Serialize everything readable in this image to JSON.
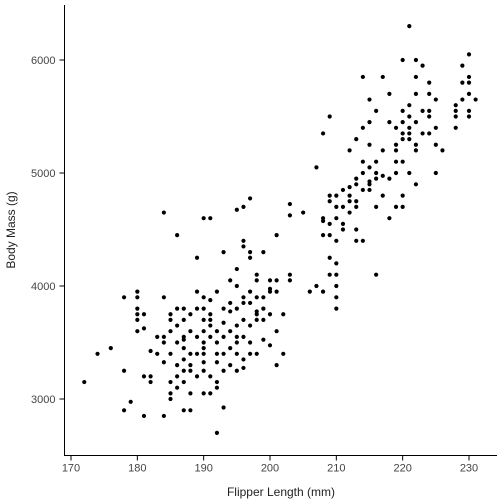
{
  "chart_data": {
    "type": "scatter",
    "title": "",
    "xlabel": "Flipper Length (mm)",
    "ylabel": "Body Mass (g)",
    "xlim": [
      169,
      233
    ],
    "ylim": [
      2550,
      6500
    ],
    "xticks": [
      170,
      180,
      190,
      200,
      210,
      220,
      230
    ],
    "yticks": [
      3000,
      4000,
      5000,
      6000
    ],
    "grid": false,
    "legend": "none",
    "marker_color": "#000000",
    "series": [
      {
        "points": [
          [
            172,
            3150
          ],
          [
            174,
            3400
          ],
          [
            176,
            3450
          ],
          [
            178,
            3250
          ],
          [
            178,
            2900
          ],
          [
            178,
            3900
          ],
          [
            179,
            2975
          ],
          [
            180,
            3700
          ],
          [
            180,
            3600
          ],
          [
            180,
            3750
          ],
          [
            180,
            3800
          ],
          [
            180,
            3950
          ],
          [
            180,
            3900
          ],
          [
            181,
            2850
          ],
          [
            181,
            3625
          ],
          [
            181,
            3200
          ],
          [
            181,
            3750
          ],
          [
            182,
            3150
          ],
          [
            182,
            3425
          ],
          [
            182,
            3200
          ],
          [
            183,
            3550
          ],
          [
            183,
            3400
          ],
          [
            184,
            3900
          ],
          [
            184,
            3500
          ],
          [
            184,
            3550
          ],
          [
            184,
            3325
          ],
          [
            184,
            2850
          ],
          [
            184,
            4650
          ],
          [
            185,
            3150
          ],
          [
            185,
            3700
          ],
          [
            185,
            3750
          ],
          [
            185,
            3400
          ],
          [
            185,
            3050
          ],
          [
            185,
            3000
          ],
          [
            185,
            3600
          ],
          [
            186,
            3100
          ],
          [
            186,
            3800
          ],
          [
            186,
            3200
          ],
          [
            186,
            4450
          ],
          [
            186,
            3500
          ],
          [
            186,
            3650
          ],
          [
            186,
            3300
          ],
          [
            187,
            3250
          ],
          [
            187,
            3450
          ],
          [
            187,
            3150
          ],
          [
            187,
            2900
          ],
          [
            187,
            3550
          ],
          [
            187,
            3800
          ],
          [
            187,
            3525
          ],
          [
            187,
            3350
          ],
          [
            187,
            3700
          ],
          [
            188,
            3300
          ],
          [
            188,
            3600
          ],
          [
            188,
            3050
          ],
          [
            188,
            2900
          ],
          [
            188,
            3400
          ],
          [
            188,
            3750
          ],
          [
            188,
            3250
          ],
          [
            189,
            3200
          ],
          [
            189,
            3550
          ],
          [
            189,
            3400
          ],
          [
            189,
            3950
          ],
          [
            189,
            3800
          ],
          [
            189,
            4250
          ],
          [
            190,
            3450
          ],
          [
            190,
            3700
          ],
          [
            190,
            3800
          ],
          [
            190,
            3250
          ],
          [
            190,
            3600
          ],
          [
            190,
            3400
          ],
          [
            190,
            3500
          ],
          [
            190,
            3900
          ],
          [
            190,
            3325
          ],
          [
            190,
            4600
          ],
          [
            190,
            3050
          ],
          [
            191,
            3550
          ],
          [
            191,
            3200
          ],
          [
            191,
            3700
          ],
          [
            191,
            3050
          ],
          [
            191,
            4600
          ],
          [
            191,
            3750
          ],
          [
            191,
            3875
          ],
          [
            191,
            3650
          ],
          [
            192,
            3600
          ],
          [
            192,
            3100
          ],
          [
            192,
            3400
          ],
          [
            192,
            3950
          ],
          [
            192,
            3500
          ],
          [
            192,
            3150
          ],
          [
            192,
            2700
          ],
          [
            192,
            3325
          ],
          [
            193,
            3250
          ],
          [
            193,
            3800
          ],
          [
            193,
            3550
          ],
          [
            193,
            3400
          ],
          [
            193,
            3675
          ],
          [
            193,
            4300
          ],
          [
            193,
            2925
          ],
          [
            194,
            3600
          ],
          [
            194,
            3450
          ],
          [
            194,
            3300
          ],
          [
            194,
            3850
          ],
          [
            194,
            3775
          ],
          [
            194,
            4050
          ],
          [
            195,
            3800
          ],
          [
            195,
            3250
          ],
          [
            195,
            3550
          ],
          [
            195,
            3400
          ],
          [
            195,
            3500
          ],
          [
            195,
            4000
          ],
          [
            195,
            4150
          ],
          [
            195,
            3650
          ],
          [
            195,
            4675
          ],
          [
            196,
            3900
          ],
          [
            196,
            3700
          ],
          [
            196,
            3550
          ],
          [
            196,
            4400
          ],
          [
            196,
            3350
          ],
          [
            196,
            4700
          ],
          [
            196,
            3850
          ],
          [
            196,
            4350
          ],
          [
            196,
            3275
          ],
          [
            197,
            3950
          ],
          [
            197,
            4300
          ],
          [
            197,
            3650
          ],
          [
            197,
            3850
          ],
          [
            197,
            4250
          ],
          [
            197,
            4775
          ],
          [
            197,
            3500
          ],
          [
            197,
            3400
          ],
          [
            198,
            3750
          ],
          [
            198,
            4100
          ],
          [
            198,
            3700
          ],
          [
            198,
            3900
          ],
          [
            198,
            3400
          ],
          [
            198,
            3775
          ],
          [
            198,
            4050
          ],
          [
            199,
            3900
          ],
          [
            199,
            3800
          ],
          [
            199,
            4300
          ],
          [
            199,
            3700
          ],
          [
            199,
            3525
          ],
          [
            200,
            3750
          ],
          [
            200,
            4050
          ],
          [
            200,
            3950
          ],
          [
            200,
            3475
          ],
          [
            200,
            3975
          ],
          [
            201,
            3950
          ],
          [
            201,
            4450
          ],
          [
            201,
            3600
          ],
          [
            201,
            4050
          ],
          [
            201,
            3300
          ],
          [
            202,
            3750
          ],
          [
            202,
            3400
          ],
          [
            203,
            4050
          ],
          [
            203,
            4100
          ],
          [
            203,
            4725
          ],
          [
            203,
            4625
          ],
          [
            205,
            4650
          ],
          [
            206,
            3950
          ],
          [
            207,
            4000
          ],
          [
            207,
            5050
          ],
          [
            208,
            4600
          ],
          [
            208,
            4575
          ],
          [
            208,
            5350
          ],
          [
            208,
            3950
          ],
          [
            208,
            4450
          ],
          [
            209,
            4250
          ],
          [
            209,
            4800
          ],
          [
            209,
            4750
          ],
          [
            209,
            5500
          ],
          [
            209,
            4450
          ],
          [
            209,
            4100
          ],
          [
            209,
            4550
          ],
          [
            210,
            4800
          ],
          [
            210,
            4700
          ],
          [
            210,
            4400
          ],
          [
            210,
            4200
          ],
          [
            210,
            4600
          ],
          [
            210,
            3800
          ],
          [
            210,
            3900
          ],
          [
            210,
            4100
          ],
          [
            210,
            4000
          ],
          [
            211,
            4850
          ],
          [
            211,
            4500
          ],
          [
            211,
            4700
          ],
          [
            211,
            4550
          ],
          [
            212,
            4650
          ],
          [
            212,
            4800
          ],
          [
            212,
            5200
          ],
          [
            212,
            4750
          ],
          [
            212,
            4875
          ],
          [
            213,
            4900
          ],
          [
            213,
            4400
          ],
          [
            213,
            4750
          ],
          [
            213,
            5300
          ],
          [
            213,
            4950
          ],
          [
            213,
            4700
          ],
          [
            213,
            4500
          ],
          [
            214,
            5000
          ],
          [
            214,
            4400
          ],
          [
            214,
            5100
          ],
          [
            214,
            5400
          ],
          [
            214,
            4850
          ],
          [
            214,
            5850
          ],
          [
            215,
            4925
          ],
          [
            215,
            5050
          ],
          [
            215,
            4900
          ],
          [
            215,
            5250
          ],
          [
            215,
            5450
          ],
          [
            215,
            4850
          ],
          [
            215,
            5650
          ],
          [
            216,
            5000
          ],
          [
            216,
            4700
          ],
          [
            216,
            5100
          ],
          [
            216,
            4950
          ],
          [
            216,
            4100
          ],
          [
            216,
            5550
          ],
          [
            217,
            5200
          ],
          [
            217,
            4800
          ],
          [
            217,
            4975
          ],
          [
            217,
            5850
          ],
          [
            218,
            4950
          ],
          [
            218,
            4600
          ],
          [
            218,
            5450
          ],
          [
            218,
            5700
          ],
          [
            219,
            5250
          ],
          [
            219,
            4700
          ],
          [
            219,
            5200
          ],
          [
            219,
            5100
          ],
          [
            219,
            5000
          ],
          [
            219,
            5400
          ],
          [
            220,
            5300
          ],
          [
            220,
            5450
          ],
          [
            220,
            4800
          ],
          [
            220,
            5350
          ],
          [
            220,
            4700
          ],
          [
            220,
            5550
          ],
          [
            220,
            6000
          ],
          [
            220,
            5100
          ],
          [
            221,
            5500
          ],
          [
            221,
            5350
          ],
          [
            221,
            5300
          ],
          [
            221,
            5000
          ],
          [
            221,
            6300
          ],
          [
            221,
            5600
          ],
          [
            221,
            5400
          ],
          [
            222,
            5450
          ],
          [
            222,
            5250
          ],
          [
            222,
            6000
          ],
          [
            222,
            5200
          ],
          [
            222,
            5850
          ],
          [
            222,
            4900
          ],
          [
            222,
            5700
          ],
          [
            223,
            5550
          ],
          [
            223,
            5950
          ],
          [
            223,
            5350
          ],
          [
            224,
            5550
          ],
          [
            224,
            5800
          ],
          [
            224,
            5350
          ],
          [
            224,
            5500
          ],
          [
            224,
            5700
          ],
          [
            225,
            5400
          ],
          [
            225,
            5000
          ],
          [
            225,
            5250
          ],
          [
            225,
            5650
          ],
          [
            226,
            5200
          ],
          [
            228,
            5550
          ],
          [
            228,
            5600
          ],
          [
            228,
            5400
          ],
          [
            228,
            5500
          ],
          [
            229,
            5650
          ],
          [
            229,
            5800
          ],
          [
            229,
            5950
          ],
          [
            230,
            6050
          ],
          [
            230,
            5800
          ],
          [
            230,
            5700
          ],
          [
            230,
            5850
          ],
          [
            230,
            5550
          ],
          [
            230,
            5500
          ],
          [
            231,
            5650
          ]
        ]
      }
    ]
  }
}
